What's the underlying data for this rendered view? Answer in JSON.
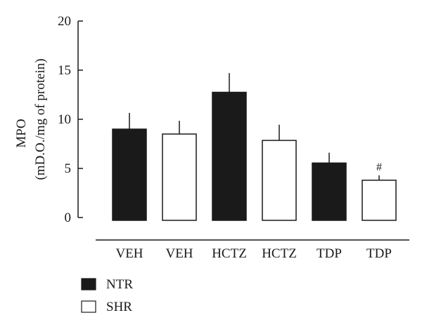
{
  "chart_data": {
    "type": "bar",
    "categories": [
      "VEH",
      "VEH",
      "HCTZ",
      "HCTZ",
      "TDP",
      "TDP"
    ],
    "groups": [
      "NTR",
      "SHR",
      "NTR",
      "SHR",
      "NTR",
      "SHR"
    ],
    "values": [
      9.0,
      8.5,
      12.75,
      7.85,
      5.55,
      3.8
    ],
    "errors": [
      1.65,
      1.35,
      1.95,
      1.6,
      1.05,
      0.5
    ],
    "annotations": [
      "",
      "",
      "",
      "",
      "",
      "#"
    ],
    "series": [
      {
        "name": "NTR",
        "color": "#1a1a1a"
      },
      {
        "name": "SHR",
        "color": "#ffffff"
      }
    ],
    "ylabel_line1": "MPO",
    "ylabel_line2": "(mD.O./mg of protein)",
    "yticks": [
      0,
      5,
      10,
      15,
      20
    ],
    "ylim": [
      0,
      20
    ],
    "grid": false,
    "legend_position": "bottom-left"
  }
}
